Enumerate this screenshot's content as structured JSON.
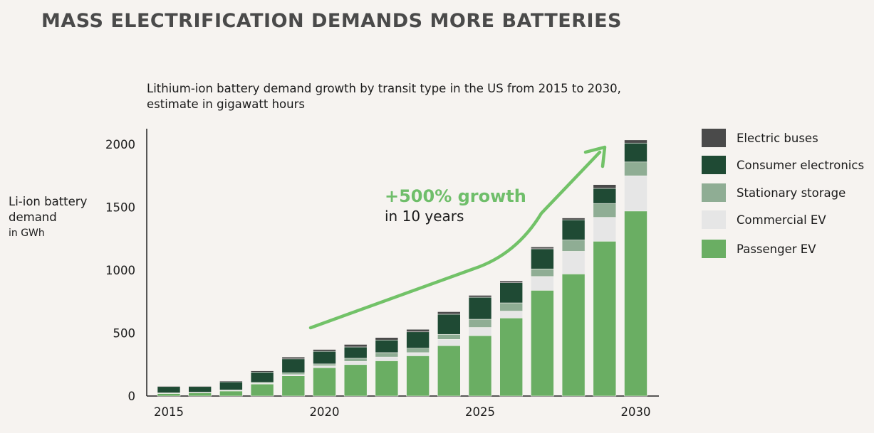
{
  "title": "MASS ELECTRIFICATION DEMANDS MORE BATTERIES",
  "subtitle_line1": "Lithium-ion battery demand growth by transit type in the US from 2015 to 2030,",
  "subtitle_line2": "estimate in gigawatt hours",
  "ylabel_line1": "Li-ion battery",
  "ylabel_line2": "demand",
  "ylabel_unit": "in GWh",
  "callout_main": "+500% growth",
  "callout_sub": "in 10 years",
  "colors": {
    "passenger_ev": "#6aae63",
    "commercial_ev": "#e6e6e6",
    "stationary_storage": "#8fad94",
    "consumer_electronics": "#1f4a34",
    "electric_buses": "#4a4a4a",
    "arrow": "#72c268",
    "axis": "#222222"
  },
  "legend": [
    {
      "label": "Electric buses",
      "color": "#4a4a4a"
    },
    {
      "label": "Consumer electronics",
      "color": "#1f4a34"
    },
    {
      "label": "Stationary storage",
      "color": "#8fad94"
    },
    {
      "label": "Commercial EV",
      "color": "#e6e6e6"
    },
    {
      "label": "Passenger EV",
      "color": "#6aae63"
    }
  ],
  "chart_data": {
    "type": "bar",
    "stacked": true,
    "title": "MASS ELECTRIFICATION DEMANDS MORE BATTERIES",
    "subtitle": "Lithium-ion battery demand growth by transit type in the US from 2015 to 2030, estimate in gigawatt hours",
    "ylabel": "Li-ion battery demand in GWh",
    "xlabel": "",
    "ylim": [
      0,
      2100
    ],
    "yticks": [
      0,
      500,
      1000,
      1500,
      2000
    ],
    "xtick_labels": [
      "2015",
      "2020",
      "2025",
      "2030"
    ],
    "xtick_positions": [
      2015,
      2020,
      2025,
      2030
    ],
    "categories": [
      2015,
      2016,
      2017,
      2018,
      2019,
      2020,
      2021,
      2022,
      2023,
      2024,
      2025,
      2026,
      2027,
      2028,
      2029,
      2030
    ],
    "series": [
      {
        "name": "Passenger EV",
        "values": [
          20,
          25,
          40,
          95,
          160,
          225,
          250,
          280,
          320,
          400,
          480,
          620,
          840,
          970,
          1230,
          1470
        ]
      },
      {
        "name": "Commercial EV",
        "values": [
          2,
          2,
          3,
          5,
          10,
          15,
          25,
          30,
          25,
          50,
          65,
          55,
          110,
          180,
          190,
          280
        ]
      },
      {
        "name": "Stationary storage",
        "values": [
          3,
          3,
          5,
          10,
          15,
          15,
          25,
          35,
          35,
          40,
          65,
          65,
          60,
          90,
          110,
          110
        ]
      },
      {
        "name": "Consumer electronics",
        "values": [
          50,
          45,
          65,
          80,
          110,
          100,
          90,
          100,
          130,
          160,
          175,
          160,
          160,
          160,
          120,
          150
        ]
      },
      {
        "name": "Electric buses",
        "values": [
          5,
          5,
          7,
          10,
          15,
          15,
          20,
          20,
          20,
          20,
          15,
          15,
          15,
          15,
          30,
          25
        ]
      }
    ],
    "annotation": "+500% growth in 10 years",
    "legend_position": "right"
  }
}
